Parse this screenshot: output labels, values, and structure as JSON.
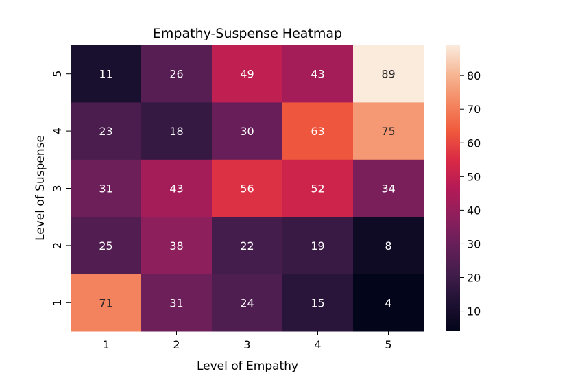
{
  "chart_data": {
    "type": "heatmap",
    "title": "Empathy-Suspense Heatmap",
    "xlabel": "Level of Empathy",
    "ylabel": "Level of Suspense",
    "x_categories": [
      "1",
      "2",
      "3",
      "4",
      "5"
    ],
    "y_categories": [
      "5",
      "4",
      "3",
      "2",
      "1"
    ],
    "values": [
      [
        11,
        26,
        49,
        43,
        89
      ],
      [
        23,
        18,
        30,
        63,
        75
      ],
      [
        31,
        43,
        56,
        52,
        34
      ],
      [
        25,
        38,
        22,
        19,
        8
      ],
      [
        71,
        31,
        24,
        15,
        4
      ]
    ],
    "colorbar": {
      "min": 4,
      "max": 89,
      "ticks": [
        "10",
        "20",
        "30",
        "40",
        "50",
        "60",
        "70",
        "80"
      ],
      "colormap": "rocket"
    },
    "annotations": true,
    "grid": false
  }
}
